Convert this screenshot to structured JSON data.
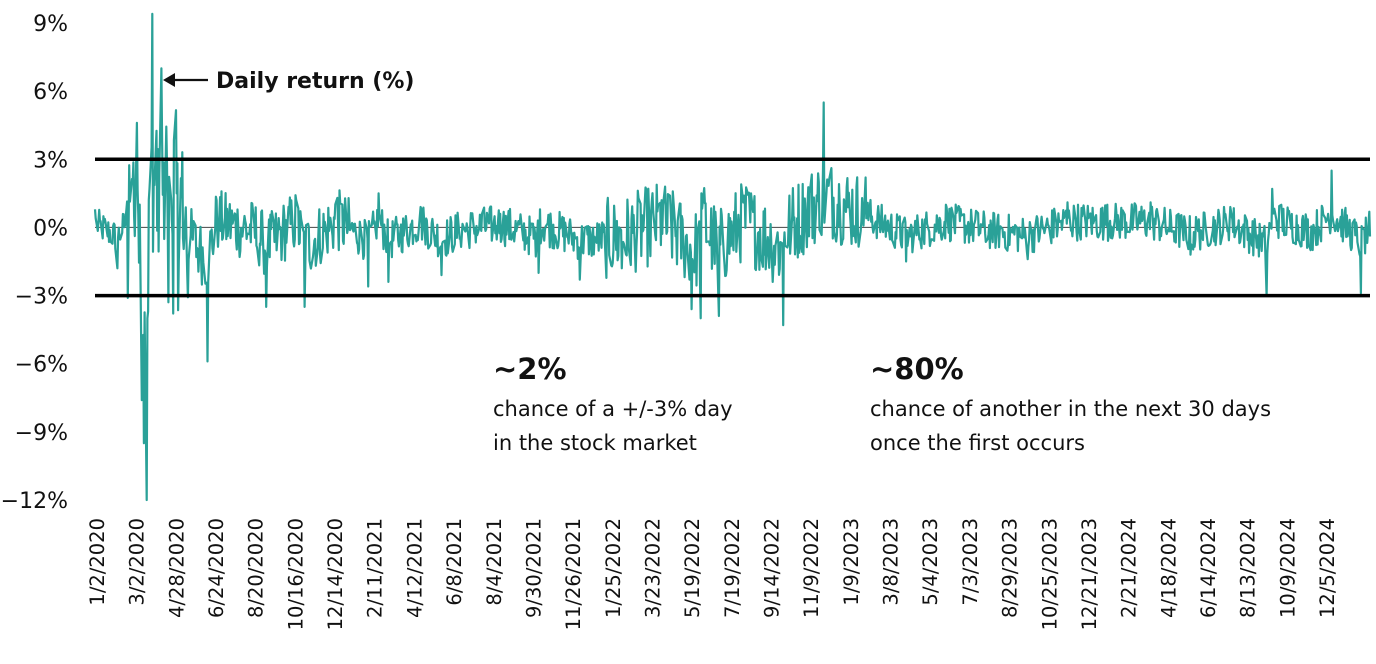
{
  "chart_data": {
    "type": "line",
    "title": "",
    "xlabel": "",
    "ylabel": "",
    "ylim": [
      -12,
      9.5
    ],
    "y_tick_labels": [
      "9%",
      "6%",
      "3%",
      "0%",
      "−3%",
      "−6%",
      "−9%",
      "−12%"
    ],
    "y_tick_values": [
      9,
      6,
      3,
      0,
      -3,
      -6,
      -9,
      -12
    ],
    "x_tick_labels": [
      "1/2/2020",
      "3/2/2020",
      "4/28/2020",
      "6/24/2020",
      "8/20/2020",
      "10/16/2020",
      "12/14/2020",
      "2/11/2021",
      "4/12/2021",
      "6/8/2021",
      "8/4/2021",
      "9/30/2021",
      "11/26/2021",
      "1/25/2022",
      "3/23/2022",
      "5/19/2022",
      "7/19/2022",
      "9/14/2022",
      "11/9/2022",
      "1/9/2023",
      "3/8/2023",
      "5/4/2023",
      "7/3/2023",
      "8/29/2023",
      "10/25/2023",
      "12/21/2023",
      "2/21/2024",
      "4/18/2024",
      "6/14/2024",
      "8/13/2024",
      "10/9/2024",
      "12/5/2024"
    ],
    "threshold_lines": [
      3,
      -3
    ],
    "series": [
      {
        "name": "Daily return (%)",
        "color": "#2aa198",
        "x": [
          "1/2/2020",
          "2/3/2020",
          "3/2/2020",
          "3/9/2020",
          "3/12/2020",
          "3/16/2020",
          "3/24/2020",
          "4/6/2020",
          "4/28/2020",
          "6/11/2020",
          "6/24/2020",
          "8/20/2020",
          "9/3/2020",
          "10/16/2020",
          "10/28/2020",
          "12/14/2020",
          "1/27/2021",
          "2/11/2021",
          "2/25/2021",
          "4/12/2021",
          "5/12/2021",
          "6/8/2021",
          "8/4/2021",
          "9/28/2021",
          "9/30/2021",
          "11/26/2021",
          "1/25/2022",
          "3/23/2022",
          "5/5/2022",
          "5/18/2022",
          "5/19/2022",
          "6/13/2022",
          "7/19/2022",
          "9/13/2022",
          "9/14/2022",
          "11/10/2022",
          "1/9/2023",
          "3/8/2023",
          "5/4/2023",
          "7/3/2023",
          "8/29/2023",
          "10/25/2023",
          "12/21/2023",
          "2/21/2024",
          "4/18/2024",
          "6/14/2024",
          "8/5/2024",
          "8/13/2024",
          "10/9/2024",
          "11/6/2024",
          "12/5/2024",
          "12/18/2024",
          "12/31/2024"
        ],
        "values": [
          0.8,
          -1.8,
          4.6,
          -7.6,
          -9.5,
          -12,
          9.4,
          7,
          1.5,
          -5.9,
          1.2,
          -0.8,
          -3.5,
          1.2,
          -3.5,
          1.3,
          -2.6,
          1.5,
          -2.4,
          0.9,
          -2.1,
          -0.5,
          0.6,
          -2.0,
          0.8,
          -2.3,
          -1.8,
          1.2,
          -3.6,
          -4.0,
          1.5,
          -3.9,
          1.4,
          -4.3,
          -0.8,
          5.5,
          2.2,
          -1.5,
          1.0,
          -0.5,
          -1.4,
          1.1,
          1.0,
          1.1,
          -1.2,
          0.9,
          -3.0,
          1.7,
          -0.8,
          2.5,
          -0.9,
          -2.9,
          -0.4
        ]
      }
    ]
  },
  "annotations": {
    "series_label": "Daily return (%)",
    "callout1": {
      "value": "~2%",
      "line1": "chance of a +/-3% day",
      "line2": "in the stock market"
    },
    "callout2": {
      "value": "~80%",
      "line1": "chance of another in the next 30 days",
      "line2": "once the first occurs"
    }
  }
}
